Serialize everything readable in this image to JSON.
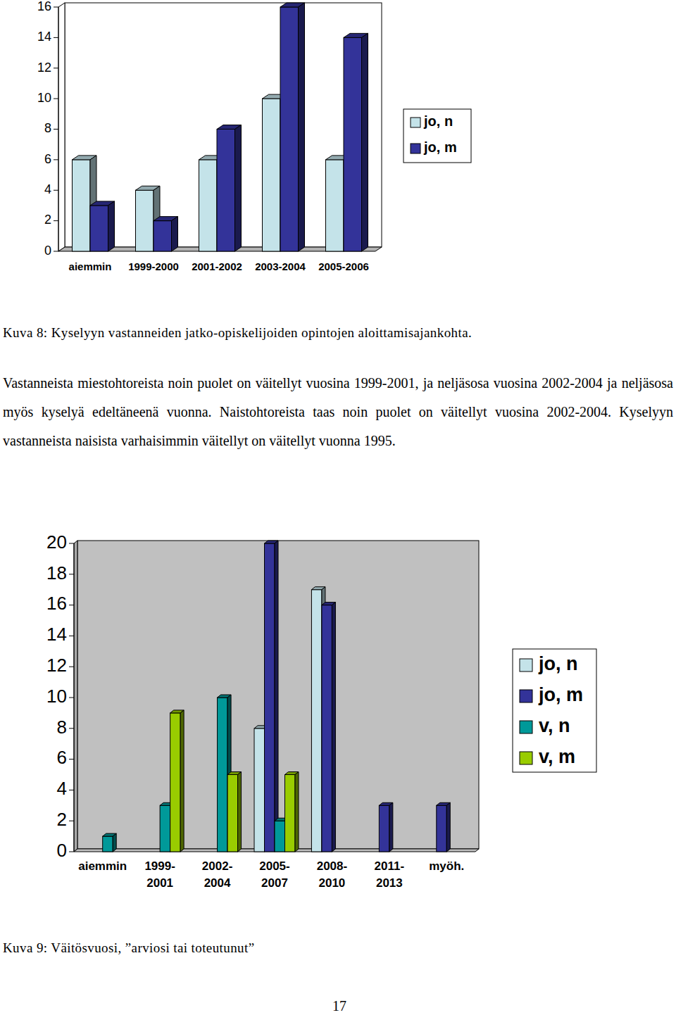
{
  "chart_data": [
    {
      "type": "bar",
      "categories": [
        "aiemmin",
        "1999-2000",
        "2001-2002",
        "2003-2004",
        "2005-2006"
      ],
      "series": [
        {
          "name": "jo, n",
          "color": "#c4e3e9",
          "values": [
            6,
            4,
            6,
            10,
            6
          ]
        },
        {
          "name": "jo, m",
          "color": "#333399",
          "values": [
            3,
            2,
            8,
            16,
            14
          ]
        }
      ],
      "ylim": [
        0,
        16
      ],
      "yticks": [
        0,
        2,
        4,
        6,
        8,
        10,
        12,
        14,
        16
      ],
      "grid": false,
      "legend": "right"
    },
    {
      "type": "bar",
      "categories": [
        "aiemmin",
        "1999-2001",
        "2002-2004",
        "2005-2007",
        "2008-2010",
        "2011-2013",
        "myöh."
      ],
      "series": [
        {
          "name": "jo, n",
          "color": "#c4e3e9",
          "values": [
            0,
            0,
            0,
            8,
            17,
            0,
            0
          ]
        },
        {
          "name": "jo, m",
          "color": "#333399",
          "values": [
            0,
            0,
            0,
            20,
            16,
            3,
            3
          ]
        },
        {
          "name": "v, n",
          "color": "#009999",
          "values": [
            1,
            3,
            10,
            2,
            0,
            0,
            0
          ]
        },
        {
          "name": "v, m",
          "color": "#99cc00",
          "values": [
            0,
            9,
            5,
            5,
            0,
            0,
            0
          ]
        }
      ],
      "ylim": [
        0,
        20
      ],
      "yticks": [
        0,
        2,
        4,
        6,
        8,
        10,
        12,
        14,
        16,
        18,
        20
      ],
      "grid": false,
      "legend": "right"
    }
  ],
  "captions": [
    "Kuva 8: Kyselyyn vastanneiden jatko-opiskelijoiden opintojen aloittamisajankohta.",
    "Kuva 9: Väitösvuosi, ”arviosi tai toteutunut”"
  ],
  "paragraph": "Vastanneista miestohtoreista noin puolet on väitellyt vuosina 1999-2001, ja neljäsosa vuosina 2002-2004 ja neljäsosa myös kyselyä edeltäneenä vuonna. Naistohtoreista taas noin puolet on väitellyt vuosina 2002-2004. Kyselyyn vastanneista naisista varhaisimmin väitellyt on väitellyt vuonna 1995.",
  "page_number": "17"
}
